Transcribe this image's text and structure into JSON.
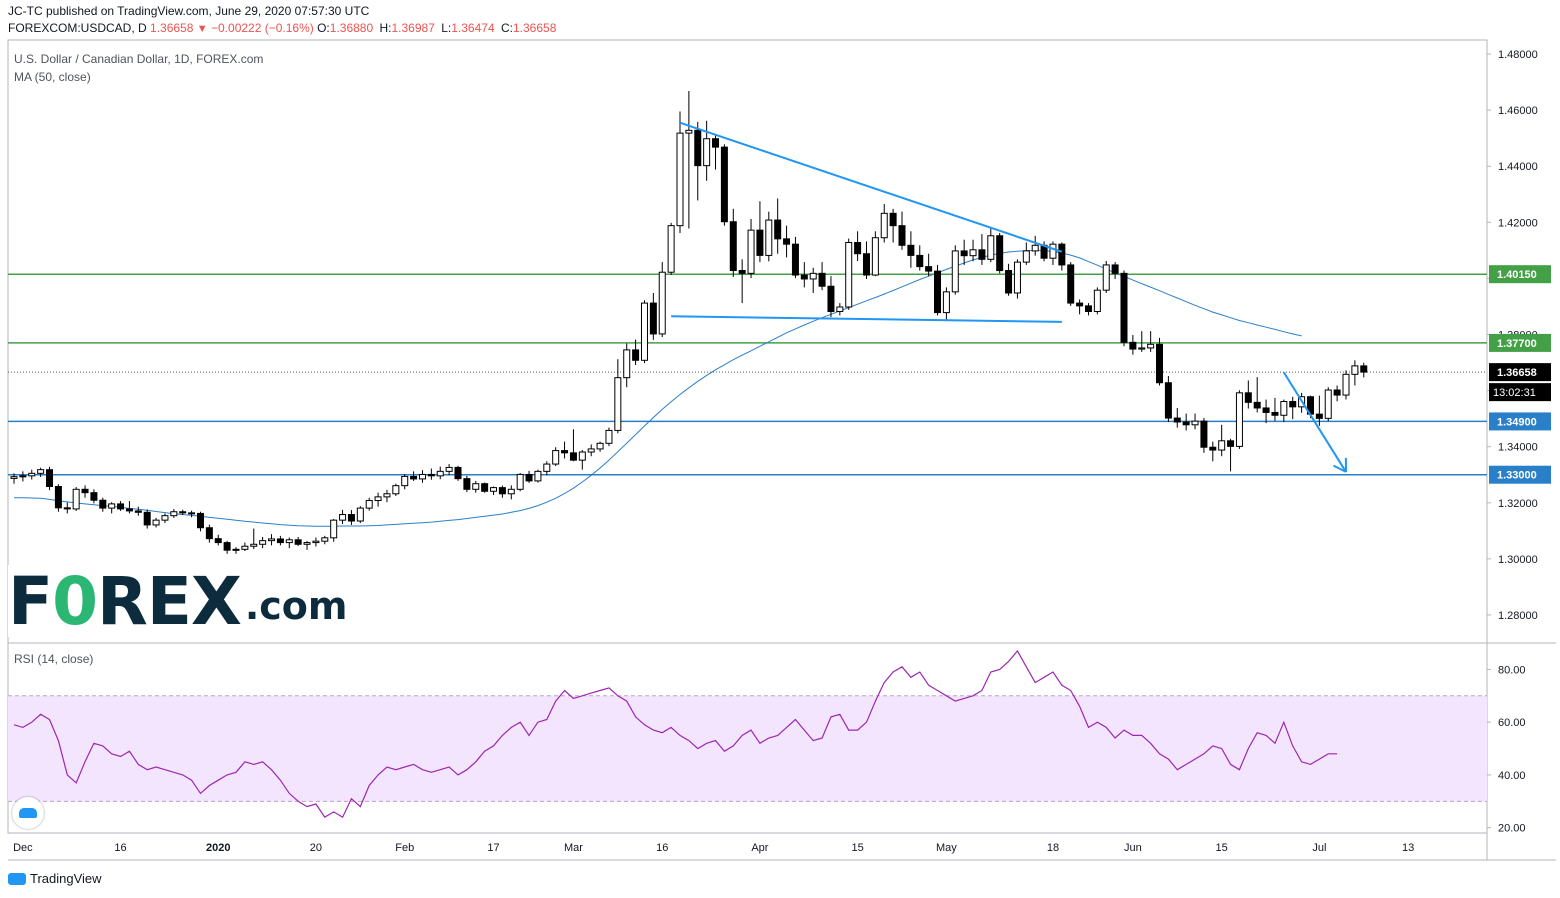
{
  "header": {
    "line1": "JC-TC published on TradingView.com, June 29, 2020 07:57:30 UTC",
    "symbol": "FOREXCOM:USDCAD, D",
    "last": "1.36658",
    "arrow": "▼",
    "change": "−0.00222 (−0.16%)",
    "o_label": "O:",
    "o_value": "1.36880",
    "h_label": "H:",
    "h_value": "1.36987",
    "l_label": "L:",
    "l_value": "1.36474",
    "c_label": "C:",
    "c_value": "1.36658"
  },
  "pane_main": {
    "title": "U.S. Dollar / Canadian Dollar, 1D, FOREX.com",
    "ma_label": "MA (50, close)"
  },
  "pane_rsi": {
    "title": "RSI (14, close)"
  },
  "branding": {
    "forex_logo_pre": "F",
    "forex_logo_o": "0",
    "forex_logo_post": "REX",
    "forex_logo_com": ".com",
    "tradingview": "TradingView"
  },
  "colors": {
    "bull": "#ffffff",
    "bear": "#000000",
    "ma": "#2a7fc9",
    "support": "#2a7fc9",
    "resistance": "#43a047",
    "rsi": "#9c27b0",
    "rsi_band": "#f3e5fd",
    "price_badge": "#000000"
  },
  "chart_data": {
    "type": "candlestick",
    "title": "U.S. Dollar / Canadian Dollar, 1D, FOREX.com",
    "main_axis": {
      "ylim": [
        1.27,
        1.485
      ],
      "ticks": [
        "1.48000",
        "1.46000",
        "1.44000",
        "1.42000",
        "1.40000",
        "1.38000",
        "1.36000",
        "1.34000",
        "1.32000",
        "1.30000",
        "1.28000"
      ],
      "tick_values": [
        1.48,
        1.46,
        1.44,
        1.42,
        1.4,
        1.38,
        1.36,
        1.34,
        1.32,
        1.3,
        1.28
      ]
    },
    "x_axis": {
      "labels": [
        "Dec",
        "16",
        "2020",
        "20",
        "Feb",
        "17",
        "Mar",
        "16",
        "Apr",
        "15",
        "May",
        "18",
        "Jun",
        "15",
        "Jul",
        "13"
      ],
      "label_bar_index": [
        1,
        12,
        23,
        34,
        44,
        54,
        63,
        73,
        84,
        95,
        105,
        117,
        126,
        136,
        147,
        157
      ]
    },
    "horizontal_levels": [
      {
        "value": 1.4015,
        "label": "1.40150",
        "role": "resistance"
      },
      {
        "value": 1.377,
        "label": "1.37700",
        "role": "resistance"
      },
      {
        "value": 1.349,
        "label": "1.34900",
        "role": "support"
      },
      {
        "value": 1.33,
        "label": "1.33000",
        "role": "support"
      }
    ],
    "current_price": {
      "value": 1.36658,
      "label": "1.36658",
      "countdown": "13:02:31"
    },
    "trendlines": [
      {
        "name": "descending-triangle-top",
        "from": [
          75,
          1.4555
        ],
        "to": [
          118,
          1.4095
        ]
      },
      {
        "name": "triangle-base",
        "from": [
          74,
          1.3865
        ],
        "to": [
          118,
          1.3845
        ]
      }
    ],
    "projection_arrow": {
      "from": [
        143,
        1.3665
      ],
      "to": [
        150,
        1.331
      ]
    },
    "ohlc": [
      [
        1.3287,
        1.3305,
        1.3268,
        1.3293
      ],
      [
        1.3293,
        1.3312,
        1.3276,
        1.3296
      ],
      [
        1.3296,
        1.3318,
        1.3283,
        1.3305
      ],
      [
        1.3305,
        1.3325,
        1.3292,
        1.3318
      ],
      [
        1.3318,
        1.3328,
        1.3245,
        1.3258
      ],
      [
        1.3258,
        1.3266,
        1.3168,
        1.3182
      ],
      [
        1.3182,
        1.3201,
        1.3162,
        1.3178
      ],
      [
        1.3178,
        1.3256,
        1.3171,
        1.3248
      ],
      [
        1.3248,
        1.3262,
        1.3218,
        1.3236
      ],
      [
        1.3236,
        1.3248,
        1.3198,
        1.3209
      ],
      [
        1.3209,
        1.3218,
        1.3168,
        1.3181
      ],
      [
        1.3181,
        1.3202,
        1.3162,
        1.3196
      ],
      [
        1.3196,
        1.3206,
        1.3171,
        1.3178
      ],
      [
        1.3178,
        1.3206,
        1.3162,
        1.3171
      ],
      [
        1.3171,
        1.3186,
        1.3154,
        1.3166
      ],
      [
        1.3166,
        1.3176,
        1.3108,
        1.3121
      ],
      [
        1.3121,
        1.3146,
        1.3112,
        1.3138
      ],
      [
        1.3138,
        1.3162,
        1.3128,
        1.3154
      ],
      [
        1.3154,
        1.3178,
        1.3146,
        1.3168
      ],
      [
        1.3168,
        1.3175,
        1.3156,
        1.3164
      ],
      [
        1.3164,
        1.3172,
        1.3148,
        1.3162
      ],
      [
        1.3162,
        1.3168,
        1.3098,
        1.3111
      ],
      [
        1.3111,
        1.3122,
        1.3058,
        1.3072
      ],
      [
        1.3072,
        1.3086,
        1.3048,
        1.3058
      ],
      [
        1.3058,
        1.3064,
        1.3018,
        1.3031
      ],
      [
        1.3031,
        1.3042,
        1.3018,
        1.3034
      ],
      [
        1.3034,
        1.3058,
        1.3028,
        1.3045
      ],
      [
        1.3045,
        1.3108,
        1.3035,
        1.3052
      ],
      [
        1.3052,
        1.3078,
        1.3038,
        1.3065
      ],
      [
        1.3065,
        1.3088,
        1.3048,
        1.3071
      ],
      [
        1.3071,
        1.3082,
        1.3048,
        1.3058
      ],
      [
        1.3058,
        1.3076,
        1.3038,
        1.3068
      ],
      [
        1.3068,
        1.3078,
        1.3046,
        1.3052
      ],
      [
        1.3052,
        1.3064,
        1.3032,
        1.3058
      ],
      [
        1.3058,
        1.3076,
        1.3044,
        1.3063
      ],
      [
        1.3063,
        1.3082,
        1.3052,
        1.3075
      ],
      [
        1.3075,
        1.3142,
        1.3061,
        1.3138
      ],
      [
        1.3138,
        1.3175,
        1.3124,
        1.3158
      ],
      [
        1.3158,
        1.3174,
        1.3121,
        1.3135
      ],
      [
        1.3135,
        1.3188,
        1.3128,
        1.3181
      ],
      [
        1.3181,
        1.3218,
        1.3172,
        1.3208
      ],
      [
        1.3208,
        1.3236,
        1.3186,
        1.3221
      ],
      [
        1.3221,
        1.3246,
        1.3202,
        1.3232
      ],
      [
        1.3232,
        1.3268,
        1.3224,
        1.3261
      ],
      [
        1.3261,
        1.3302,
        1.3248,
        1.3294
      ],
      [
        1.3294,
        1.3312,
        1.3278,
        1.3285
      ],
      [
        1.3285,
        1.3316,
        1.3271,
        1.3301
      ],
      [
        1.3301,
        1.3322,
        1.3282,
        1.3296
      ],
      [
        1.3296,
        1.3329,
        1.3284,
        1.3312
      ],
      [
        1.3312,
        1.3338,
        1.3298,
        1.3326
      ],
      [
        1.3326,
        1.3332,
        1.3278,
        1.3286
      ],
      [
        1.3286,
        1.3296,
        1.3238,
        1.3248
      ],
      [
        1.3248,
        1.3278,
        1.3236,
        1.3268
      ],
      [
        1.3268,
        1.3272,
        1.3236,
        1.3241
      ],
      [
        1.3241,
        1.3258,
        1.3228,
        1.3254
      ],
      [
        1.3254,
        1.3261,
        1.3218,
        1.3232
      ],
      [
        1.3232,
        1.3262,
        1.3212,
        1.3248
      ],
      [
        1.3248,
        1.3306,
        1.3241,
        1.3301
      ],
      [
        1.3301,
        1.3314,
        1.3271,
        1.3278
      ],
      [
        1.3278,
        1.3318,
        1.3272,
        1.3312
      ],
      [
        1.3312,
        1.3348,
        1.3298,
        1.3338
      ],
      [
        1.3338,
        1.3398,
        1.3331,
        1.3386
      ],
      [
        1.3386,
        1.3418,
        1.3358,
        1.3378
      ],
      [
        1.3378,
        1.3462,
        1.3348,
        1.3352
      ],
      [
        1.3352,
        1.3388,
        1.3318,
        1.3381
      ],
      [
        1.3381,
        1.3408,
        1.3366,
        1.3392
      ],
      [
        1.3392,
        1.3418,
        1.3382,
        1.3412
      ],
      [
        1.3412,
        1.3468,
        1.3402,
        1.3458
      ],
      [
        1.3458,
        1.3712,
        1.3448,
        1.3646
      ],
      [
        1.3646,
        1.3768,
        1.3612,
        1.3745
      ],
      [
        1.3745,
        1.3782,
        1.3691,
        1.3708
      ],
      [
        1.3708,
        1.3922,
        1.3698,
        1.3912
      ],
      [
        1.3912,
        1.3948,
        1.3781,
        1.3802
      ],
      [
        1.3802,
        1.4058,
        1.3791,
        1.4022
      ],
      [
        1.4022,
        1.4198,
        1.4012,
        1.4188
      ],
      [
        1.4188,
        1.4595,
        1.4162,
        1.4518
      ],
      [
        1.4518,
        1.4668,
        1.4178,
        1.4528
      ],
      [
        1.4528,
        1.4558,
        1.4278,
        1.4402
      ],
      [
        1.4402,
        1.4562,
        1.4348,
        1.4498
      ],
      [
        1.4498,
        1.4515,
        1.4388,
        1.4468
      ],
      [
        1.4468,
        1.4478,
        1.4188,
        1.4202
      ],
      [
        1.4202,
        1.4248,
        1.4005,
        1.4028
      ],
      [
        1.4028,
        1.4068,
        1.3912,
        1.4018
      ],
      [
        1.4018,
        1.4212,
        1.4001,
        1.4172
      ],
      [
        1.4172,
        1.4275,
        1.4058,
        1.4082
      ],
      [
        1.4082,
        1.4238,
        1.4061,
        1.4208
      ],
      [
        1.4208,
        1.4285,
        1.4088,
        1.4141
      ],
      [
        1.4141,
        1.4188,
        1.4075,
        1.4122
      ],
      [
        1.4122,
        1.4148,
        1.4001,
        1.4012
      ],
      [
        1.4012,
        1.4058,
        1.3968,
        1.3998
      ],
      [
        1.3998,
        1.4038,
        1.3948,
        1.4018
      ],
      [
        1.4018,
        1.4058,
        1.3958,
        1.3972
      ],
      [
        1.3972,
        1.4008,
        1.3862,
        1.3882
      ],
      [
        1.3882,
        1.3912,
        1.3868,
        1.3898
      ],
      [
        1.3898,
        1.4142,
        1.3888,
        1.4128
      ],
      [
        1.4128,
        1.4168,
        1.4062,
        1.4088
      ],
      [
        1.4088,
        1.4132,
        1.3998,
        1.4012
      ],
      [
        1.4012,
        1.4168,
        1.4008,
        1.4145
      ],
      [
        1.4145,
        1.4265,
        1.4128,
        1.4232
      ],
      [
        1.4232,
        1.4248,
        1.4128,
        1.4188
      ],
      [
        1.4188,
        1.4238,
        1.4102,
        1.4118
      ],
      [
        1.4118,
        1.4168,
        1.4038,
        1.4082
      ],
      [
        1.4082,
        1.4118,
        1.4028,
        1.4042
      ],
      [
        1.4042,
        1.4088,
        1.4008,
        1.4026
      ],
      [
        1.4026,
        1.4048,
        1.3868,
        1.3878
      ],
      [
        1.3878,
        1.3968,
        1.3848,
        1.3952
      ],
      [
        1.3952,
        1.4118,
        1.3942,
        1.4098
      ],
      [
        1.4098,
        1.4138,
        1.4048,
        1.4081
      ],
      [
        1.4081,
        1.4138,
        1.4061,
        1.4102
      ],
      [
        1.4102,
        1.4158,
        1.4048,
        1.4068
      ],
      [
        1.4068,
        1.4178,
        1.4058,
        1.4152
      ],
      [
        1.4152,
        1.4162,
        1.4018,
        1.4028
      ],
      [
        1.4028,
        1.4052,
        1.3938,
        1.3948
      ],
      [
        1.3948,
        1.4068,
        1.3928,
        1.4058
      ],
      [
        1.4058,
        1.4128,
        1.4048,
        1.4098
      ],
      [
        1.4098,
        1.4152,
        1.4081,
        1.4118
      ],
      [
        1.4118,
        1.4132,
        1.4061,
        1.4072
      ],
      [
        1.4072,
        1.4132,
        1.4048,
        1.4122
      ],
      [
        1.4122,
        1.4128,
        1.4028,
        1.4048
      ],
      [
        1.4048,
        1.4058,
        1.3902,
        1.3912
      ],
      [
        1.3912,
        1.3925,
        1.3872,
        1.3902
      ],
      [
        1.3902,
        1.3912,
        1.3868,
        1.3882
      ],
      [
        1.3882,
        1.3968,
        1.3872,
        1.3958
      ],
      [
        1.3958,
        1.4062,
        1.3948,
        1.4048
      ],
      [
        1.4048,
        1.4058,
        1.3998,
        1.4018
      ],
      [
        1.4018,
        1.4028,
        1.3758,
        1.3772
      ],
      [
        1.3772,
        1.3798,
        1.3728,
        1.3748
      ],
      [
        1.3748,
        1.3812,
        1.3738,
        1.3752
      ],
      [
        1.3752,
        1.3812,
        1.3738,
        1.3765
      ],
      [
        1.3765,
        1.3788,
        1.3618,
        1.3628
      ],
      [
        1.3628,
        1.3652,
        1.3488,
        1.3502
      ],
      [
        1.3502,
        1.3538,
        1.3468,
        1.3488
      ],
      [
        1.3488,
        1.3518,
        1.3458,
        1.3478
      ],
      [
        1.3478,
        1.3518,
        1.3462,
        1.3491
      ],
      [
        1.3491,
        1.3502,
        1.3378,
        1.3398
      ],
      [
        1.3398,
        1.3418,
        1.3348,
        1.3388
      ],
      [
        1.3388,
        1.3478,
        1.3366,
        1.3421
      ],
      [
        1.3421,
        1.3428,
        1.3312,
        1.3401
      ],
      [
        1.3401,
        1.3601,
        1.3392,
        1.3592
      ],
      [
        1.3592,
        1.3636,
        1.3536,
        1.3558
      ],
      [
        1.3558,
        1.3648,
        1.3522,
        1.3538
      ],
      [
        1.3538,
        1.3568,
        1.3484,
        1.3522
      ],
      [
        1.3522,
        1.3574,
        1.3492,
        1.3512
      ],
      [
        1.3512,
        1.3568,
        1.3488,
        1.3561
      ],
      [
        1.3561,
        1.3578,
        1.3498,
        1.3542
      ],
      [
        1.3542,
        1.3592,
        1.3521,
        1.3578
      ],
      [
        1.3578,
        1.3582,
        1.3502,
        1.3516
      ],
      [
        1.3516,
        1.3582,
        1.3474,
        1.3501
      ],
      [
        1.3501,
        1.3612,
        1.3491,
        1.3602
      ],
      [
        1.3602,
        1.3618,
        1.3562,
        1.3584
      ],
      [
        1.3584,
        1.3672,
        1.3568,
        1.3658
      ],
      [
        1.3658,
        1.3708,
        1.3618,
        1.3688
      ],
      [
        1.3688,
        1.3699,
        1.3647,
        1.3666
      ]
    ],
    "ma50": [
      1.3218,
      1.3218,
      1.3217,
      1.3216,
      1.3212,
      1.3207,
      1.3203,
      1.3199,
      1.3196,
      1.3193,
      1.319,
      1.3187,
      1.3184,
      1.318,
      1.3177,
      1.3173,
      1.3169,
      1.3165,
      1.3161,
      1.3158,
      1.3155,
      1.3152,
      1.3148,
      1.3145,
      1.3141,
      1.3138,
      1.3134,
      1.3131,
      1.3128,
      1.3125,
      1.3122,
      1.312,
      1.3118,
      1.3117,
      1.3116,
      1.3116,
      1.3116,
      1.3117,
      1.3117,
      1.3117,
      1.3118,
      1.3119,
      1.3121,
      1.3123,
      1.3125,
      1.3127,
      1.3129,
      1.3131,
      1.3134,
      1.3137,
      1.314,
      1.3144,
      1.3148,
      1.3152,
      1.3156,
      1.316,
      1.3166,
      1.3172,
      1.318,
      1.319,
      1.3202,
      1.3216,
      1.3233,
      1.3252,
      1.3274,
      1.3298,
      1.3324,
      1.3352,
      1.3382,
      1.3412,
      1.3443,
      1.3474,
      1.3504,
      1.3533,
      1.356,
      1.3586,
      1.361,
      1.3633,
      1.3654,
      1.3674,
      1.3692,
      1.371,
      1.3726,
      1.3742,
      1.3758,
      1.3774,
      1.379,
      1.3806,
      1.382,
      1.3834,
      1.3847,
      1.386,
      1.3872,
      1.3884,
      1.3896,
      1.3908,
      1.392,
      1.3932,
      1.3944,
      1.3957,
      1.397,
      1.3983,
      1.3996,
      1.4008,
      1.402,
      1.4032,
      1.4044,
      1.4055,
      1.4066,
      1.4075,
      1.4083,
      1.4089,
      1.4094,
      1.4097,
      1.4099,
      1.41,
      1.4099,
      1.4096,
      1.4091,
      1.4083,
      1.4073,
      1.406,
      1.4047,
      1.4033,
      1.402,
      1.4007,
      1.3994,
      1.3981,
      1.3969,
      1.3956,
      1.3943,
      1.393,
      1.3917,
      1.3904,
      1.3892,
      1.388,
      1.387,
      1.386,
      1.385,
      1.3842,
      1.3834,
      1.3826,
      1.3818,
      1.381,
      1.3802,
      1.3795
    ],
    "rsi": {
      "title": "RSI (14, close)",
      "ylim": [
        18,
        90
      ],
      "ticks": [
        "80.00",
        "60.00",
        "40.00",
        "20.00"
      ],
      "tick_values": [
        80,
        60,
        40,
        20
      ],
      "band": [
        30,
        70
      ],
      "values": [
        59,
        58,
        60,
        63,
        61,
        53,
        40,
        37,
        45,
        52,
        51,
        48,
        47,
        49,
        44,
        42,
        43,
        42,
        41,
        40,
        38,
        33,
        36,
        38,
        40,
        41,
        45,
        44,
        45,
        42,
        38,
        33,
        30,
        28,
        29,
        24,
        26,
        24,
        31,
        28,
        36,
        40,
        43,
        42,
        43,
        44,
        42,
        41,
        42,
        43,
        40,
        42,
        45,
        49,
        51,
        55,
        58,
        60,
        55,
        60,
        61,
        68,
        72,
        69,
        70,
        71,
        72,
        73,
        70,
        68,
        62,
        59,
        57,
        56,
        58,
        55,
        53,
        50,
        52,
        53,
        49,
        51,
        55,
        57,
        52,
        54,
        55,
        58,
        61,
        57,
        53,
        54,
        62,
        63,
        57,
        57,
        60,
        68,
        75,
        79,
        81,
        77,
        79,
        74,
        72,
        70,
        68,
        69,
        70,
        72,
        79,
        80,
        83,
        87,
        81,
        75,
        77,
        79,
        74,
        72,
        66,
        58,
        60,
        58,
        54,
        57,
        55,
        55,
        52,
        48,
        46,
        42,
        44,
        46,
        48,
        51,
        50,
        44,
        42,
        50,
        56,
        55,
        52,
        60,
        51,
        45,
        44,
        46,
        48,
        48
      ]
    }
  }
}
